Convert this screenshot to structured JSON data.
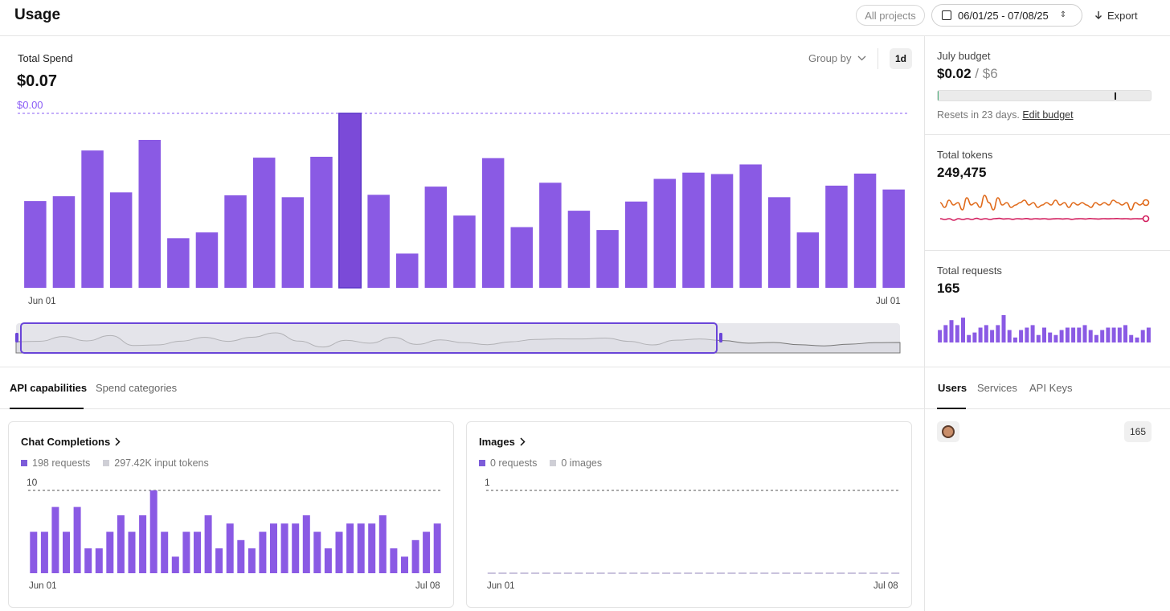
{
  "header": {
    "title": "Usage",
    "projects_label": "All projects",
    "date_range": "06/01/25 - 07/08/25",
    "export_label": "Export"
  },
  "spend": {
    "label": "Total Spend",
    "value": "$0.07",
    "reference_value": "$0.00",
    "group_by_label": "Group by",
    "granularity": "1d",
    "x_start": "Jun 01",
    "x_end": "Jul 01"
  },
  "tabs_left": [
    {
      "label": "API capabilities",
      "active": true
    },
    {
      "label": "Spend categories",
      "active": false
    }
  ],
  "cards": {
    "chat": {
      "title": "Chat Completions",
      "legend_requests": "198 requests",
      "legend_tokens": "297.42K input tokens",
      "y_max_label": "10",
      "x_start": "Jun 01",
      "x_end": "Jul 08"
    },
    "images": {
      "title": "Images",
      "legend_requests": "0 requests",
      "legend_images": "0 images",
      "y_max_label": "1",
      "x_start": "Jun 01",
      "x_end": "Jul 08"
    }
  },
  "right_panel": {
    "budget_label": "July budget",
    "budget_spent": "$0.02",
    "budget_sep": "/",
    "budget_limit": "$6",
    "budget_fraction": 0.0033,
    "budget_marker_fraction": 0.83,
    "resets_text": "Resets in 23 days.",
    "edit_budget_label": "Edit budget",
    "tokens_label": "Total tokens",
    "tokens_value": "249,475",
    "requests_label": "Total requests",
    "requests_value": "165"
  },
  "tabs_right": [
    {
      "label": "Users",
      "active": true
    },
    {
      "label": "Services",
      "active": false
    },
    {
      "label": "API Keys",
      "active": false
    }
  ],
  "users": [
    {
      "requests": "165"
    }
  ],
  "colors": {
    "bar": "#8a5ae4",
    "bar_selected": "#7b4ad8",
    "accent": "#8a5cf6",
    "token_line_1": "#e06a1b",
    "token_line_2": "#d21e5e"
  },
  "chart_data": [
    {
      "type": "bar",
      "title": "Total Spend",
      "x_start": "Jun 01",
      "x_end": "Jul 01",
      "values": [
        0.018,
        0.019,
        0.0285,
        0.0198,
        0.0307,
        0.0103,
        0.0115,
        0.0192,
        0.027,
        0.0188,
        0.0272,
        0.0362,
        0.0193,
        0.0071,
        0.021,
        0.015,
        0.0269,
        0.0126,
        0.0218,
        0.016,
        0.012,
        0.0179,
        0.0226,
        0.0239,
        0.0236,
        0.0256,
        0.0188,
        0.0115,
        0.0212,
        0.0237,
        0.0204
      ],
      "ylim": [
        0,
        0.0362
      ],
      "selected_index": 11
    },
    {
      "type": "bar",
      "title": "Chat Completions",
      "x_start": "Jun 01",
      "x_end": "Jul 08",
      "values": [
        5,
        5,
        8,
        5,
        8,
        3,
        3,
        5,
        7,
        5,
        7,
        10,
        5,
        2,
        5,
        5,
        7,
        3,
        6,
        4,
        3,
        5,
        6,
        6,
        6,
        7,
        5,
        3,
        5,
        6,
        6,
        6,
        7,
        3,
        2,
        4,
        5,
        6
      ],
      "ylim": [
        0,
        10
      ]
    },
    {
      "type": "bar",
      "title": "Images",
      "x_start": "Jun 01",
      "x_end": "Jul 08",
      "values": [
        0,
        0,
        0,
        0,
        0,
        0,
        0,
        0,
        0,
        0,
        0,
        0,
        0,
        0,
        0,
        0,
        0,
        0,
        0,
        0,
        0,
        0,
        0,
        0,
        0,
        0,
        0,
        0,
        0,
        0,
        0,
        0,
        0,
        0,
        0,
        0,
        0,
        0
      ],
      "ylim": [
        0,
        1
      ]
    },
    {
      "type": "line",
      "title": "Total tokens",
      "series": [
        {
          "name": "tokens-a",
          "values": [
            6,
            4,
            7,
            5,
            6,
            3,
            8,
            5,
            6,
            4,
            9,
            6,
            3,
            8,
            5,
            6,
            4,
            5,
            6,
            7,
            5,
            6,
            4,
            5,
            6,
            5,
            7,
            5,
            6,
            4,
            6,
            5,
            6,
            5,
            4,
            6,
            5,
            6,
            5,
            7,
            6,
            5,
            6,
            3,
            6,
            5,
            6
          ]
        },
        {
          "name": "tokens-b",
          "values": [
            2,
            1.5,
            2,
            1,
            2,
            1.5,
            2,
            1.5,
            2.2,
            1.6,
            2,
            1.5,
            2,
            2.2,
            1.8,
            2,
            1.6,
            2,
            1.8,
            2.1,
            1.7,
            2,
            1.8,
            2,
            1.7,
            1.9,
            2,
            1.8,
            2,
            1.6,
            1.9,
            2,
            1.8,
            2.1,
            1.9,
            1.8,
            2,
            1.9,
            2,
            2.1,
            1.9,
            2,
            1.8,
            2,
            1.9,
            2
          ]
        }
      ]
    },
    {
      "type": "bar",
      "title": "Total requests",
      "values": [
        5,
        7,
        9,
        7,
        10,
        3,
        4,
        6,
        7,
        5,
        7,
        11,
        5,
        2,
        5,
        6,
        7,
        3,
        6,
        4,
        3,
        5,
        6,
        6,
        6,
        7,
        5,
        3,
        5,
        6,
        6,
        6,
        7,
        3,
        2,
        5,
        6
      ]
    }
  ]
}
